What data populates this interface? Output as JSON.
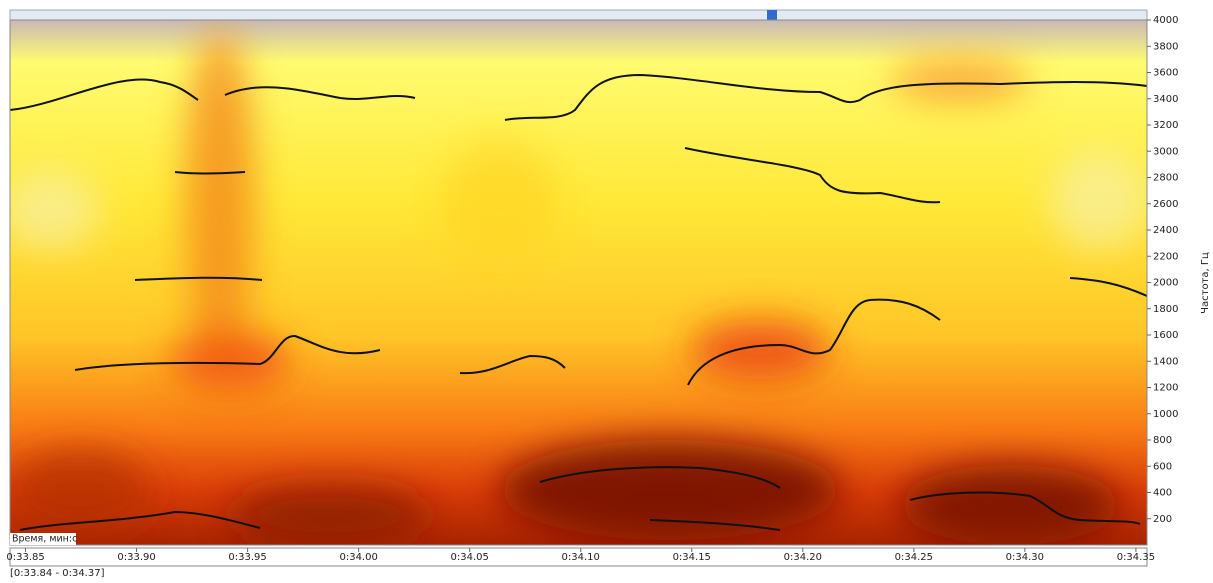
{
  "chart_data": {
    "type": "spectrogram",
    "x_label": "Время, мин:с",
    "y_label": "Частота, Гц",
    "range_label": "[0:33.84 - 0:34.37]",
    "xlim": [
      33.843,
      34.355
    ],
    "xticks": [
      {
        "value": 33.85,
        "label": "0:33.85"
      },
      {
        "value": 33.9,
        "label": "0:33.90"
      },
      {
        "value": 33.95,
        "label": "0:33.95"
      },
      {
        "value": 34.0,
        "label": "0:34.00"
      },
      {
        "value": 34.05,
        "label": "0:34.05"
      },
      {
        "value": 34.1,
        "label": "0:34.10"
      },
      {
        "value": 34.15,
        "label": "0:34.15"
      },
      {
        "value": 34.2,
        "label": "0:34.20"
      },
      {
        "value": 34.25,
        "label": "0:34.25"
      },
      {
        "value": 34.3,
        "label": "0:34.30"
      },
      {
        "value": 34.35,
        "label": "0:34.35"
      }
    ],
    "ylim": [
      0,
      4000
    ],
    "yticks": [
      200,
      400,
      600,
      800,
      1000,
      1200,
      1400,
      1600,
      1800,
      2000,
      2200,
      2400,
      2600,
      2800,
      3000,
      3200,
      3400,
      3600,
      3800,
      4000
    ]
  }
}
